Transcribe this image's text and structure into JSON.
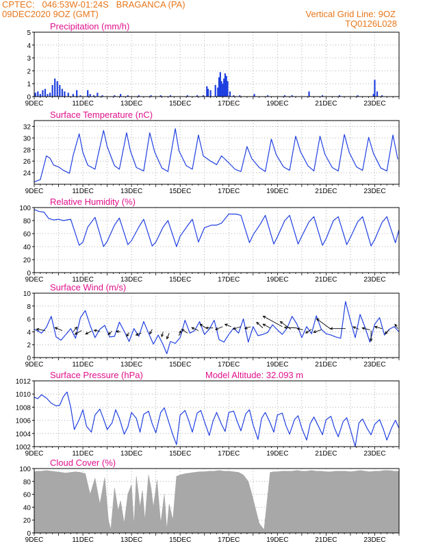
{
  "header": {
    "line1": "CPTEC:   046:53W-01:24S   BRAGANCA (PA)",
    "line2": "09DEC2020 9OZ (GMT)",
    "grid_note": "Vertical Grid Line: 9OZ",
    "code": "TQ0126L028"
  },
  "colors": {
    "header_text": "#e8761a",
    "title_text": "#e0108c",
    "series_line": "#1f3fe0",
    "bar_blue": "#1f3fe0",
    "cloud_gray": "#a8a8a8",
    "grid": "#9a9a9a",
    "axis": "#000000"
  },
  "chart_data": [
    {
      "id": "precipitation",
      "type": "bar",
      "title": "Precipitation (mm/h)",
      "x_ticks": [
        "9DEC",
        "11DEC",
        "13DEC",
        "15DEC",
        "17DEC",
        "19DEC",
        "21DEC",
        "23DEC"
      ],
      "ylim": [
        0,
        5
      ],
      "y_ticks": [
        "0",
        "1",
        "2",
        "3",
        "4",
        "5"
      ],
      "grid": true,
      "x": [
        9.05,
        9.15,
        9.25,
        9.35,
        9.45,
        9.55,
        9.65,
        9.75,
        9.85,
        9.95,
        10.05,
        10.15,
        10.25,
        10.4,
        10.6,
        10.75,
        10.9,
        11.2,
        11.3,
        11.45,
        11.6,
        11.8,
        12.3,
        12.55,
        12.85,
        13.3,
        13.8,
        14.2,
        14.6,
        15.3,
        15.7,
        15.95,
        16.1,
        16.15,
        16.25,
        16.45,
        16.55,
        16.6,
        16.65,
        16.7,
        16.75,
        16.8,
        16.85,
        16.9,
        16.95,
        17.05,
        17.2,
        17.45,
        18.05,
        18.6,
        19.3,
        19.6,
        20.3,
        20.85,
        21.55,
        22.3,
        22.95,
        23.0,
        23.1,
        23.3
      ],
      "values": [
        0.3,
        0.4,
        0.2,
        0.5,
        0.6,
        0.2,
        0.3,
        0.9,
        1.4,
        1.2,
        0.9,
        0.6,
        0.4,
        0.3,
        0.2,
        0.5,
        0.1,
        0.5,
        0.2,
        0.1,
        0.3,
        0.1,
        0.1,
        0.2,
        0.1,
        0.1,
        0.1,
        0.1,
        0.1,
        0.1,
        0.1,
        0.1,
        0.8,
        0.6,
        0.5,
        0.9,
        0.7,
        1.5,
        1.9,
        1.2,
        1.0,
        1.4,
        1.8,
        1.6,
        1.2,
        0.4,
        0.1,
        0.1,
        0.2,
        0.1,
        0.1,
        0.1,
        0.4,
        0.1,
        0.1,
        0.1,
        0.2,
        1.3,
        0.4,
        0.1
      ]
    },
    {
      "id": "temperature",
      "type": "line",
      "title": "Surface Temperature (nC)",
      "x_ticks": [
        "9DEC",
        "11DEC",
        "13DEC",
        "15DEC",
        "17DEC",
        "19DEC",
        "21DEC",
        "23DEC"
      ],
      "ylim": [
        22,
        33
      ],
      "y_ticks": [
        "24",
        "26",
        "28",
        "30",
        "32"
      ],
      "grid": true,
      "x": [
        9.0,
        9.25,
        9.5,
        9.65,
        9.8,
        10.0,
        10.2,
        10.45,
        10.6,
        10.85,
        11.0,
        11.2,
        11.5,
        11.85,
        12.0,
        12.3,
        12.5,
        12.8,
        12.95,
        13.2,
        13.5,
        13.75,
        13.95,
        14.25,
        14.5,
        14.8,
        14.95,
        15.25,
        15.5,
        15.75,
        15.95,
        16.25,
        16.5,
        16.7,
        16.95,
        17.25,
        17.5,
        17.75,
        17.95,
        18.25,
        18.5,
        18.75,
        18.95,
        19.25,
        19.5,
        19.75,
        19.95,
        20.25,
        20.5,
        20.75,
        20.95,
        21.25,
        21.5,
        21.75,
        21.95,
        22.25,
        22.5,
        22.75,
        22.95,
        23.25,
        23.5,
        23.75,
        23.95
      ],
      "values": [
        22.4,
        22.8,
        26.9,
        26.5,
        25.3,
        25.0,
        24.4,
        23.9,
        27.0,
        30.7,
        27.5,
        25.3,
        24.6,
        31.3,
        28.5,
        25.2,
        24.6,
        30.9,
        27.8,
        24.9,
        24.3,
        30.9,
        27.6,
        24.8,
        24.2,
        31.6,
        27.8,
        25.2,
        24.6,
        30.5,
        26.9,
        26.0,
        25.4,
        26.9,
        25.9,
        24.6,
        24.2,
        28.5,
        26.4,
        24.9,
        24.2,
        29.8,
        27.1,
        25.0,
        24.4,
        30.3,
        27.6,
        25.2,
        24.3,
        30.3,
        27.2,
        24.9,
        24.3,
        30.6,
        27.5,
        25.0,
        24.4,
        30.1,
        27.3,
        24.8,
        24.3,
        30.5,
        26.3
      ]
    },
    {
      "id": "humidity",
      "type": "line",
      "title": "Relative Humidity (%)",
      "x_ticks": [
        "9DEC",
        "11DEC",
        "13DEC",
        "15DEC",
        "17DEC",
        "19DEC",
        "21DEC",
        "23DEC"
      ],
      "ylim": [
        0,
        100
      ],
      "y_ticks": [
        "0",
        "20",
        "40",
        "60",
        "80",
        "100"
      ],
      "grid": true,
      "x": [
        9.0,
        9.2,
        9.4,
        9.6,
        9.8,
        10.0,
        10.2,
        10.5,
        10.85,
        11.0,
        11.2,
        11.5,
        11.85,
        12.0,
        12.3,
        12.5,
        12.85,
        13.0,
        13.3,
        13.5,
        13.85,
        14.0,
        14.3,
        14.5,
        14.85,
        15.0,
        15.3,
        15.5,
        15.75,
        16.0,
        16.3,
        16.5,
        16.7,
        17.0,
        17.3,
        17.5,
        17.85,
        18.0,
        18.3,
        18.5,
        18.85,
        19.0,
        19.3,
        19.5,
        19.85,
        20.0,
        20.3,
        20.5,
        20.85,
        21.0,
        21.3,
        21.5,
        21.85,
        22.0,
        22.3,
        22.5,
        22.85,
        23.0,
        23.3,
        23.5,
        23.85,
        24.0
      ],
      "values": [
        97,
        94,
        93,
        83,
        81,
        82,
        80,
        82,
        42,
        47,
        70,
        85,
        40,
        48,
        73,
        84,
        43,
        49,
        70,
        82,
        41,
        47,
        70,
        80,
        40,
        56,
        72,
        82,
        47,
        69,
        73,
        73,
        76,
        90,
        90,
        88,
        46,
        58,
        75,
        88,
        44,
        55,
        80,
        88,
        44,
        56,
        78,
        86,
        42,
        52,
        80,
        86,
        43,
        54,
        78,
        86,
        41,
        51,
        77,
        86,
        46,
        66
      ]
    },
    {
      "id": "wind",
      "type": "line",
      "title": "Surface Wind (m/s)",
      "x_ticks": [
        "9DEC",
        "11DEC",
        "13DEC",
        "15DEC",
        "17DEC",
        "19DEC",
        "21DEC",
        "23DEC"
      ],
      "ylim": [
        0,
        10
      ],
      "y_ticks": [
        "0",
        "2",
        "4",
        "6",
        "8",
        "10"
      ],
      "grid": true,
      "x": [
        9.0,
        9.3,
        9.5,
        9.7,
        9.9,
        10.1,
        10.3,
        10.5,
        10.7,
        10.9,
        11.1,
        11.3,
        11.5,
        11.7,
        11.9,
        12.1,
        12.3,
        12.5,
        12.7,
        12.9,
        13.1,
        13.3,
        13.5,
        13.7,
        13.9,
        14.1,
        14.3,
        14.45,
        14.6,
        14.8,
        15.0,
        15.2,
        15.4,
        15.6,
        15.8,
        16.0,
        16.2,
        16.4,
        16.6,
        16.8,
        17.0,
        17.2,
        17.4,
        17.6,
        17.8,
        18.0,
        18.2,
        18.4,
        18.6,
        18.8,
        19.0,
        19.2,
        19.4,
        19.6,
        19.8,
        20.0,
        20.2,
        20.4,
        20.6,
        20.8,
        21.0,
        21.2,
        21.4,
        21.6,
        21.8,
        22.0,
        22.2,
        22.4,
        22.6,
        22.8,
        23.0,
        23.2,
        23.4,
        23.6,
        23.8,
        24.0
      ],
      "values": [
        4.4,
        3.8,
        4.7,
        6.4,
        3.2,
        2.7,
        3.6,
        4.5,
        3.0,
        6.2,
        7.3,
        5.0,
        3.1,
        4.4,
        5.0,
        3.2,
        3.3,
        5.5,
        4.1,
        2.5,
        4.5,
        3.3,
        5.6,
        3.8,
        2.1,
        3.5,
        2.0,
        0.6,
        2.5,
        2.2,
        3.1,
        5.8,
        3.8,
        4.2,
        5.6,
        3.6,
        4.4,
        5.8,
        2.8,
        2.4,
        3.6,
        4.6,
        3.8,
        6.0,
        2.4,
        4.8,
        3.4,
        3.6,
        3.9,
        5.1,
        4.3,
        3.6,
        4.6,
        6.4,
        5.2,
        3.1,
        4.8,
        3.7,
        6.5,
        4.4,
        3.7,
        3.5,
        3.2,
        3.0,
        8.7,
        5.8,
        3.1,
        6.7,
        4.7,
        2.4,
        5.2,
        6.2,
        3.5,
        4.4,
        4.8,
        4.0
      ],
      "vectors": [
        {
          "x": 9.45,
          "y": 4.2,
          "u": -1.8,
          "v": 0.3
        },
        {
          "x": 10.15,
          "y": 4.2,
          "u": -1.5,
          "v": 0.6
        },
        {
          "x": 10.6,
          "y": 4.0,
          "u": 0.8,
          "v": 1.0
        },
        {
          "x": 10.95,
          "y": 4.2,
          "u": -1.4,
          "v": -0.8
        },
        {
          "x": 11.35,
          "y": 4.1,
          "u": -1.2,
          "v": -0.6
        },
        {
          "x": 11.7,
          "y": 4.1,
          "u": -1.2,
          "v": 0.2
        },
        {
          "x": 12.2,
          "y": 4.1,
          "u": -0.8,
          "v": -0.7
        },
        {
          "x": 12.55,
          "y": 4.0,
          "u": -0.9,
          "v": 0.1
        },
        {
          "x": 12.9,
          "y": 3.9,
          "u": -0.5,
          "v": -0.8
        },
        {
          "x": 13.4,
          "y": 3.8,
          "u": -1.1,
          "v": -0.4
        },
        {
          "x": 13.85,
          "y": 4.4,
          "u": -0.5,
          "v": -1.0
        },
        {
          "x": 14.3,
          "y": 4.0,
          "u": -0.3,
          "v": -1.0
        },
        {
          "x": 14.55,
          "y": 3.8,
          "u": -0.5,
          "v": -1.2
        },
        {
          "x": 14.95,
          "y": 3.4,
          "u": 0.4,
          "v": 1.0
        },
        {
          "x": 15.3,
          "y": 3.8,
          "u": -1.2,
          "v": 0.8
        },
        {
          "x": 15.75,
          "y": 4.2,
          "u": -1.4,
          "v": 0.6
        },
        {
          "x": 16.05,
          "y": 4.6,
          "u": -1.2,
          "v": 0.8
        },
        {
          "x": 16.35,
          "y": 4.6,
          "u": -1.5,
          "v": 0.0
        },
        {
          "x": 16.75,
          "y": 4.8,
          "u": -1.5,
          "v": -0.6
        },
        {
          "x": 17.1,
          "y": 4.8,
          "u": -1.3,
          "v": 0.5
        },
        {
          "x": 17.5,
          "y": 4.8,
          "u": -1.6,
          "v": -0.5
        },
        {
          "x": 17.9,
          "y": 4.8,
          "u": -1.2,
          "v": -0.4
        },
        {
          "x": 18.4,
          "y": 4.6,
          "u": -1.3,
          "v": 1.2
        },
        {
          "x": 18.7,
          "y": 4.6,
          "u": -1.5,
          "v": 0.8
        },
        {
          "x": 19.2,
          "y": 4.8,
          "u": -4.0,
          "v": 2.2
        },
        {
          "x": 19.8,
          "y": 4.6,
          "u": -2.6,
          "v": 0.1
        },
        {
          "x": 19.55,
          "y": 4.4,
          "u": -2.2,
          "v": 1.6
        },
        {
          "x": 20.05,
          "y": 4.3,
          "u": -1.2,
          "v": 0.3
        },
        {
          "x": 20.4,
          "y": 4.4,
          "u": -1.2,
          "v": -0.8
        },
        {
          "x": 20.8,
          "y": 4.3,
          "u": -1.6,
          "v": -0.5
        },
        {
          "x": 21.2,
          "y": 4.4,
          "u": -3.0,
          "v": 2.2
        },
        {
          "x": 21.8,
          "y": 4.5,
          "u": -3.2,
          "v": 0.0
        },
        {
          "x": 22.35,
          "y": 4.4,
          "u": -1.2,
          "v": 0.5
        },
        {
          "x": 22.8,
          "y": 4.3,
          "u": -1.6,
          "v": 0.4
        },
        {
          "x": 22.85,
          "y": 4.2,
          "u": 0.0,
          "v": -2.2
        },
        {
          "x": 23.3,
          "y": 4.5,
          "u": -1.5,
          "v": 0.4
        },
        {
          "x": 23.6,
          "y": 4.3,
          "u": -0.9,
          "v": -0.8
        },
        {
          "x": 23.95,
          "y": 4.5,
          "u": -0.6,
          "v": 0.9
        }
      ]
    },
    {
      "id": "pressure",
      "type": "line",
      "title": "Surface Pressure (hPa)",
      "annotation": "Model Altitude: 32.093 m",
      "x_ticks": [
        "9DEC",
        "11DEC",
        "13DEC",
        "15DEC",
        "17DEC",
        "19DEC",
        "21DEC",
        "23DEC"
      ],
      "ylim": [
        1002,
        1012
      ],
      "y_ticks": [
        "1002",
        "1004",
        "1006",
        "1008",
        "1010",
        "1012"
      ],
      "grid": true,
      "x": [
        9.0,
        9.15,
        9.3,
        9.5,
        9.7,
        9.9,
        10.05,
        10.2,
        10.35,
        10.5,
        10.65,
        10.85,
        11.0,
        11.15,
        11.35,
        11.5,
        11.7,
        11.85,
        12.0,
        12.2,
        12.35,
        12.5,
        12.7,
        12.85,
        13.0,
        13.2,
        13.35,
        13.5,
        13.7,
        13.85,
        14.0,
        14.2,
        14.35,
        14.5,
        14.7,
        14.85,
        15.0,
        15.2,
        15.35,
        15.5,
        15.7,
        15.85,
        16.0,
        16.2,
        16.35,
        16.5,
        16.7,
        16.85,
        17.0,
        17.2,
        17.35,
        17.5,
        17.7,
        17.85,
        18.0,
        18.2,
        18.35,
        18.5,
        18.7,
        18.85,
        19.0,
        19.2,
        19.35,
        19.5,
        19.7,
        19.85,
        20.0,
        20.2,
        20.35,
        20.5,
        20.7,
        20.85,
        21.0,
        21.2,
        21.35,
        21.5,
        21.7,
        21.85,
        22.0,
        22.2,
        22.35,
        22.5,
        22.7,
        22.85,
        23.0,
        23.2,
        23.35,
        23.5,
        23.7,
        23.85,
        24.0
      ],
      "values": [
        1009.5,
        1009.3,
        1009.9,
        1009.4,
        1008.6,
        1008.2,
        1008.3,
        1009.6,
        1010.3,
        1008.0,
        1004.6,
        1006.1,
        1007.6,
        1005.1,
        1004.2,
        1006.8,
        1007.7,
        1006.2,
        1004.6,
        1005.6,
        1007.6,
        1006.3,
        1003.9,
        1005.0,
        1007.2,
        1006.3,
        1004.2,
        1006.9,
        1007.4,
        1005.5,
        1004.1,
        1007.2,
        1007.9,
        1006.1,
        1003.8,
        1002.3,
        1006.8,
        1007.5,
        1006.0,
        1004.2,
        1007.1,
        1007.5,
        1005.8,
        1003.7,
        1005.9,
        1007.2,
        1005.4,
        1004.3,
        1007.2,
        1007.4,
        1005.8,
        1004.4,
        1007.0,
        1007.6,
        1005.3,
        1003.1,
        1006.3,
        1007.2,
        1005.6,
        1004.2,
        1006.8,
        1007.1,
        1005.2,
        1003.9,
        1006.1,
        1006.7,
        1004.8,
        1003.0,
        1005.5,
        1006.5,
        1005.0,
        1003.8,
        1006.1,
        1006.6,
        1004.8,
        1003.5,
        1005.8,
        1006.4,
        1004.6,
        1002.0,
        1005.6,
        1006.2,
        1004.7,
        1003.8,
        1005.4,
        1006.1,
        1004.7,
        1003.0,
        1004.9,
        1006.0,
        1004.8
      ]
    },
    {
      "id": "cloud",
      "type": "area",
      "title": "Cloud Cover (%)",
      "x_ticks": [
        "9DEC",
        "11DEC",
        "13DEC",
        "15DEC",
        "17DEC",
        "19DEC",
        "21DEC",
        "23DEC"
      ],
      "ylim": [
        0,
        100
      ],
      "y_ticks": [
        "0",
        "20",
        "40",
        "60",
        "80",
        "100"
      ],
      "grid": true,
      "x": [
        9.0,
        9.1,
        9.3,
        9.5,
        9.7,
        9.9,
        10.1,
        10.3,
        10.5,
        10.7,
        10.9,
        11.1,
        11.3,
        11.5,
        11.7,
        11.9,
        12.05,
        12.15,
        12.3,
        12.45,
        12.55,
        12.7,
        12.85,
        13.0,
        13.1,
        13.2,
        13.35,
        13.45,
        13.55,
        13.7,
        13.8,
        13.9,
        14.05,
        14.2,
        14.35,
        14.45,
        14.55,
        14.7,
        14.85,
        15.0,
        15.2,
        15.4,
        15.6,
        15.8,
        16.0,
        16.2,
        16.4,
        16.6,
        16.8,
        17.0,
        17.2,
        17.4,
        17.6,
        17.8,
        17.95,
        18.05,
        18.15,
        18.25,
        18.35,
        18.45,
        18.55,
        18.7,
        18.85,
        19.0,
        19.2,
        19.4,
        19.6,
        19.8,
        20.0,
        20.2,
        20.4,
        20.6,
        20.8,
        21.0,
        21.2,
        21.4,
        21.6,
        21.8,
        22.0,
        22.2,
        22.4,
        22.6,
        22.8,
        23.0,
        23.2,
        23.4,
        23.6,
        23.8,
        24.0
      ],
      "values": [
        95,
        96,
        96,
        97,
        96,
        95,
        94,
        93,
        94,
        95,
        94,
        92,
        60,
        85,
        45,
        86,
        20,
        5,
        70,
        35,
        50,
        15,
        60,
        75,
        12,
        88,
        40,
        66,
        20,
        90,
        70,
        40,
        82,
        15,
        60,
        5,
        45,
        20,
        88,
        90,
        92,
        93,
        94,
        95,
        95,
        96,
        96,
        97,
        96,
        96,
        95,
        94,
        90,
        80,
        60,
        45,
        30,
        15,
        10,
        5,
        40,
        94,
        95,
        95,
        96,
        96,
        96,
        97,
        96,
        96,
        97,
        96,
        96,
        95,
        95,
        96,
        96,
        96,
        95,
        96,
        97,
        96,
        95,
        96,
        96,
        97,
        97,
        96,
        96
      ]
    }
  ]
}
